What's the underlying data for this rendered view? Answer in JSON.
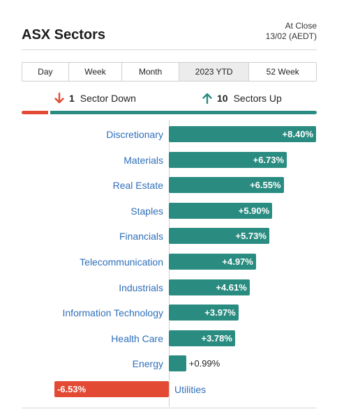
{
  "header": {
    "title": "ASX Sectors",
    "close_label": "At Close",
    "close_date": "13/02 (AEDT)"
  },
  "tabs": [
    {
      "label": "Day",
      "active": false
    },
    {
      "label": "Week",
      "active": false
    },
    {
      "label": "Month",
      "active": false
    },
    {
      "label": "2023 YTD",
      "active": true
    },
    {
      "label": "52 Week",
      "active": false
    }
  ],
  "summary": {
    "down_count": "1",
    "down_label": "Sector Down",
    "up_count": "10",
    "up_label": "Sectors Up"
  },
  "colors": {
    "positive": "#2a8c80",
    "negative": "#e34a33",
    "category_text": "#2f6fba"
  },
  "icons": {
    "down": "arrow-down-icon",
    "up": "arrow-up-icon"
  },
  "chart_data": {
    "type": "bar",
    "orientation": "horizontal",
    "categories": [
      "Discretionary",
      "Materials",
      "Real Estate",
      "Staples",
      "Financials",
      "Telecommunication",
      "Industrials",
      "Information Technology",
      "Health Care",
      "Energy",
      "Utilities"
    ],
    "values": [
      8.4,
      6.73,
      6.55,
      5.9,
      5.73,
      4.97,
      4.61,
      3.97,
      3.78,
      0.99,
      -6.53
    ],
    "value_labels": [
      "+8.40%",
      "+6.73%",
      "+6.55%",
      "+5.90%",
      "+5.73%",
      "+4.97%",
      "+4.61%",
      "+3.97%",
      "+3.78%",
      "+0.99%",
      "-6.53%"
    ],
    "unit": "%",
    "grid": false,
    "legend": "none"
  }
}
